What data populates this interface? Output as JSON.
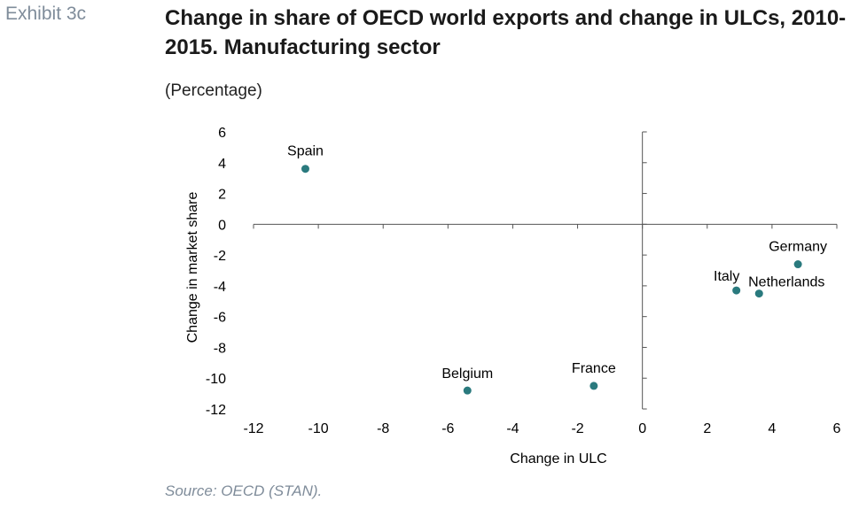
{
  "header": {
    "exhibit": "Exhibit 3c",
    "title": "Change in share of OECD world exports and change in ULCs, 2010-2015. Manufacturing sector",
    "subtitle": "(Percentage)"
  },
  "footer": {
    "source": "Source: OECD (STAN)."
  },
  "chart_data": {
    "type": "scatter",
    "title": "Change in share of OECD world exports and change in ULCs, 2010-2015. Manufacturing sector",
    "xlabel": "Change in ULC",
    "ylabel": "Change in market share",
    "xlim": [
      -12,
      6
    ],
    "ylim": [
      -12,
      6
    ],
    "xticks": [
      -12,
      -10,
      -8,
      -6,
      -4,
      -2,
      0,
      2,
      4,
      6
    ],
    "yticks": [
      6,
      4,
      2,
      0,
      -2,
      -4,
      -6,
      -8,
      -10,
      -12
    ],
    "grid": false,
    "marker_color": "#2a7a7e",
    "points": [
      {
        "label": "Spain",
        "x": -10.4,
        "y": 3.6
      },
      {
        "label": "Belgium",
        "x": -5.4,
        "y": -10.8
      },
      {
        "label": "France",
        "x": -1.5,
        "y": -10.5
      },
      {
        "label": "Germany",
        "x": 4.8,
        "y": -2.6
      },
      {
        "label": "Italy",
        "x": 2.9,
        "y": -4.3
      },
      {
        "label": "Netherlands",
        "x": 3.6,
        "y": -4.5
      }
    ]
  }
}
